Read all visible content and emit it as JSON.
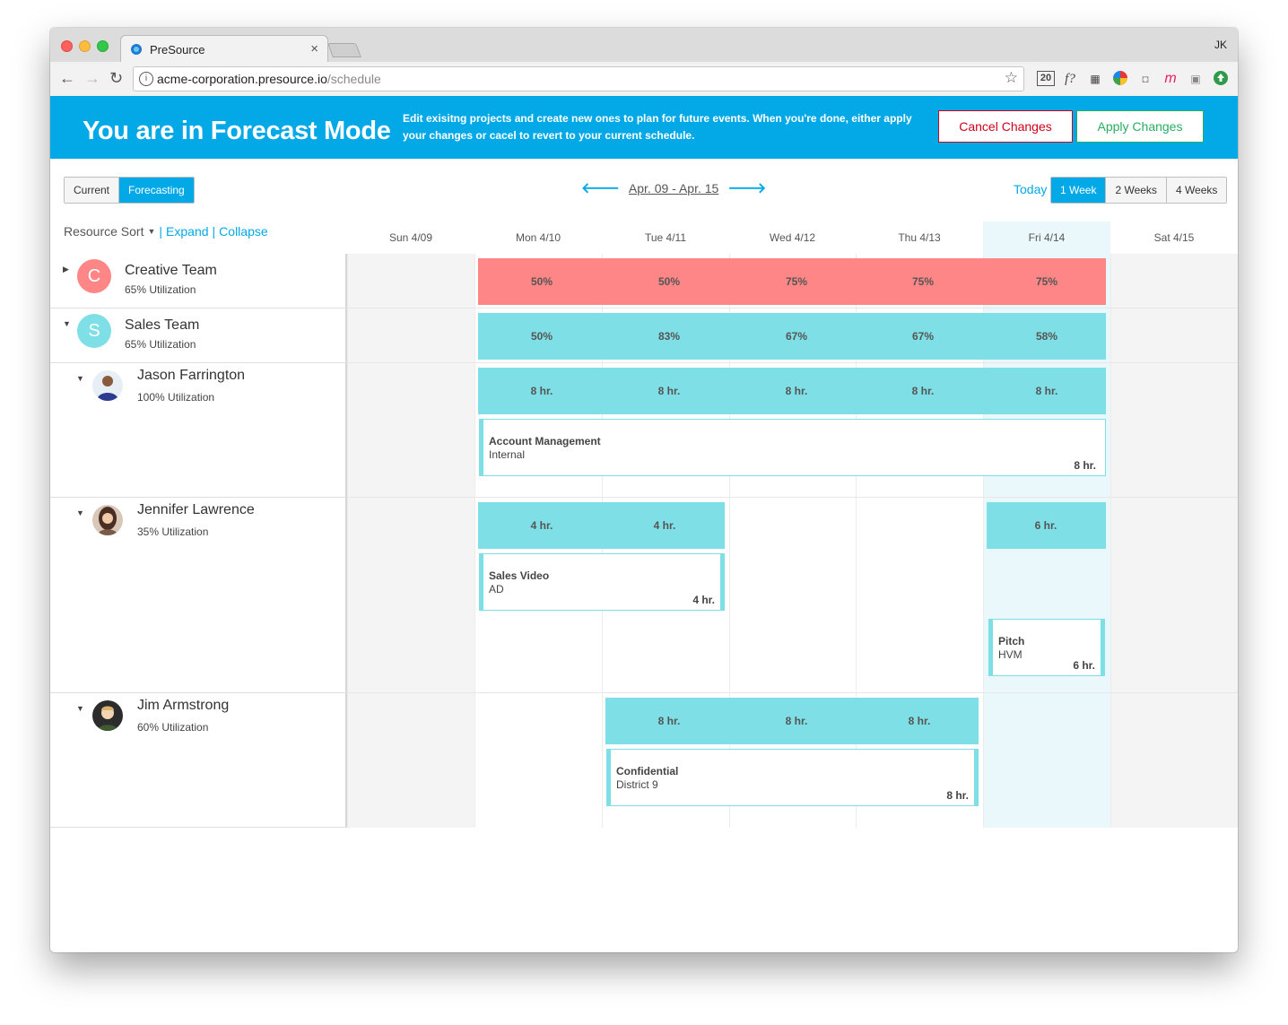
{
  "browser": {
    "tab_title": "PreSource",
    "profile": "JK",
    "url_host": "acme-corporation.presource.io",
    "url_path": "/schedule",
    "extensions": [
      "20",
      "f?",
      "qr",
      "color-wheel",
      "camera",
      "m",
      "note",
      "green-arrow"
    ]
  },
  "banner": {
    "title": "You are in Forecast Mode",
    "description": "Edit exisitng projects and create new ones to plan for future events. When you're done, either apply your changes or cacel to revert to your current schedule.",
    "cancel_label": "Cancel Changes",
    "apply_label": "Apply Changes",
    "bg_color": "#03a9e7"
  },
  "toolbar": {
    "modes": [
      "Current",
      "Forecasting"
    ],
    "active_mode": "Forecasting",
    "date_range": "Apr. 09 - Apr. 15",
    "today_label": "Today",
    "ranges": [
      "1 Week",
      "2 Weeks",
      "4 Weeks"
    ],
    "active_range": "1 Week",
    "sort_label": "Resource Sort",
    "expand_label": "Expand",
    "collapse_label": "Collapse",
    "divider": "|"
  },
  "days": [
    "Sun 4/09",
    "Mon 4/10",
    "Tue 4/11",
    "Wed 4/12",
    "Thu 4/13",
    "Fri 4/14",
    "Sat 4/15"
  ],
  "resources": [
    {
      "name": "Creative Team",
      "utilization": "65% Utilization",
      "initial": "C",
      "color": "#fe8686",
      "bar": [
        "50%",
        "50%",
        "75%",
        "75%",
        "75%"
      ]
    },
    {
      "name": "Sales Team",
      "utilization": "65% Utilization",
      "initial": "S",
      "color": "#7fdfe6",
      "bar": [
        "50%",
        "83%",
        "67%",
        "67%",
        "58%"
      ]
    },
    {
      "name": "Jason Farrington",
      "utilization": "100% Utilization",
      "bar": [
        "8 hr.",
        "8 hr.",
        "8 hr.",
        "8 hr.",
        "8 hr."
      ],
      "assignments": [
        {
          "title": "Account Management",
          "client": "Internal",
          "hours": "8 hr."
        }
      ]
    },
    {
      "name": "Jennifer Lawrence",
      "utilization": "35% Utilization",
      "bar_a": [
        "4 hr.",
        "4 hr."
      ],
      "bar_b": [
        "6 hr."
      ],
      "assignments": [
        {
          "title": "Sales Video",
          "client": "AD",
          "hours": "4 hr."
        },
        {
          "title": "Pitch",
          "client": "HVM",
          "hours": "6 hr."
        }
      ]
    },
    {
      "name": "Jim Armstrong",
      "utilization": "60% Utilization",
      "bar": [
        "8 hr.",
        "8 hr.",
        "8 hr."
      ],
      "assignments": [
        {
          "title": "Confidential",
          "client": "District 9",
          "hours": "8 hr."
        }
      ]
    }
  ],
  "colors": {
    "accent": "#03a9e7",
    "team_red": "#fe8686",
    "teal": "#7fdfe6",
    "weekend": "#f4f4f4",
    "today": "#eaf7fb"
  }
}
